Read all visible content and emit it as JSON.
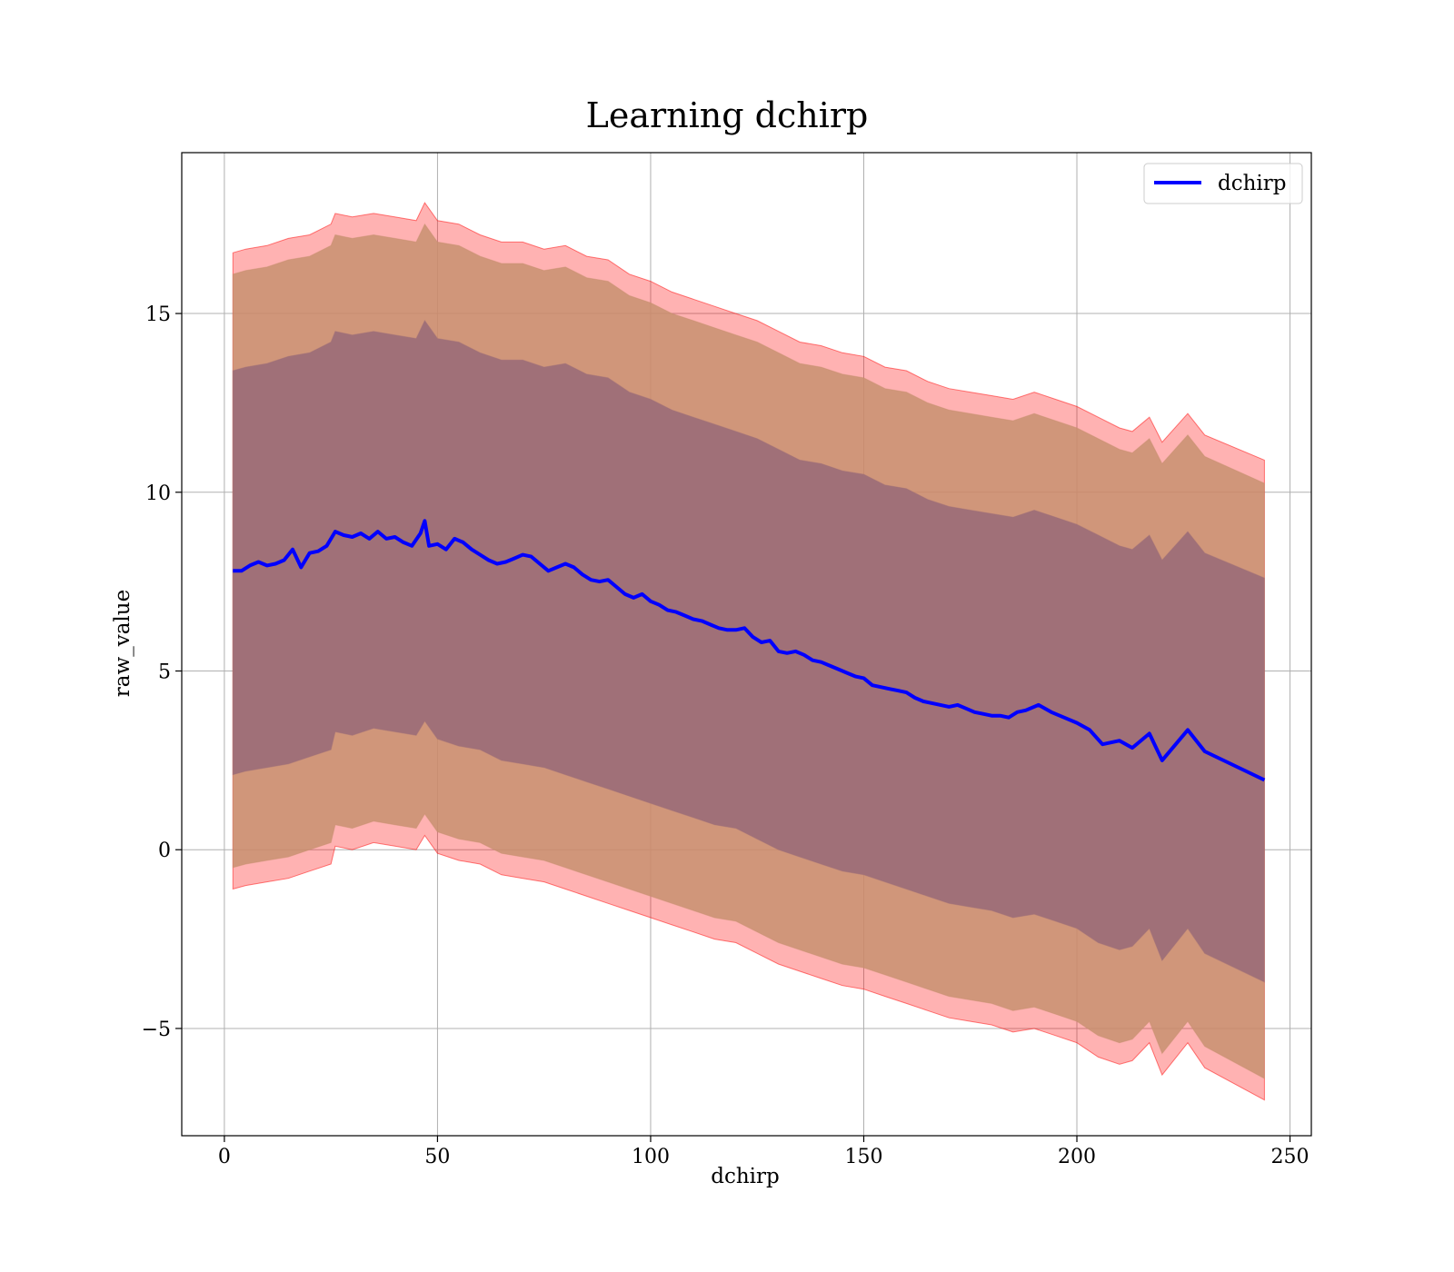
{
  "chart_data": {
    "type": "line",
    "title": "Learning dchirp",
    "xlabel": "dchirp",
    "ylabel": "raw_value",
    "xlim": [
      -10,
      255
    ],
    "ylim": [
      -8,
      19.5
    ],
    "xticks": [
      0,
      50,
      100,
      150,
      200,
      250
    ],
    "xtick_labels": [
      "0",
      "50",
      "100",
      "150",
      "200",
      "250"
    ],
    "yticks": [
      -5,
      0,
      5,
      10,
      15
    ],
    "ytick_labels": [
      "−5",
      "0",
      "5",
      "10",
      "15"
    ],
    "grid": true,
    "legend_position": "top-right",
    "series": [
      {
        "name": "dchirp",
        "color": "#0000ff",
        "x": [
          2,
          4,
          6,
          8,
          10,
          12,
          14,
          16,
          18,
          20,
          22,
          24,
          26,
          28,
          30,
          32,
          34,
          36,
          38,
          40,
          42,
          44,
          46,
          47,
          48,
          50,
          52,
          54,
          56,
          58,
          60,
          62,
          64,
          66,
          68,
          70,
          72,
          74,
          76,
          78,
          80,
          82,
          84,
          86,
          88,
          90,
          92,
          94,
          96,
          98,
          100,
          102,
          104,
          106,
          108,
          110,
          112,
          114,
          116,
          118,
          120,
          122,
          124,
          126,
          128,
          130,
          132,
          134,
          136,
          138,
          140,
          142,
          144,
          146,
          148,
          150,
          152,
          154,
          156,
          158,
          160,
          162,
          164,
          166,
          168,
          170,
          172,
          174,
          176,
          178,
          180,
          182,
          184,
          186,
          188,
          191,
          194,
          197,
          200,
          203,
          206,
          210,
          213,
          217,
          220,
          226,
          230,
          244
        ],
        "y": [
          7.8,
          7.8,
          7.95,
          8.05,
          7.95,
          8.0,
          8.1,
          8.4,
          7.9,
          8.3,
          8.35,
          8.5,
          8.9,
          8.8,
          8.75,
          8.85,
          8.7,
          8.9,
          8.7,
          8.75,
          8.6,
          8.5,
          8.85,
          9.2,
          8.5,
          8.55,
          8.4,
          8.7,
          8.6,
          8.4,
          8.25,
          8.1,
          8.0,
          8.05,
          8.15,
          8.25,
          8.2,
          8.0,
          7.8,
          7.9,
          8.0,
          7.9,
          7.7,
          7.55,
          7.5,
          7.55,
          7.35,
          7.15,
          7.05,
          7.15,
          6.95,
          6.85,
          6.7,
          6.65,
          6.55,
          6.45,
          6.4,
          6.3,
          6.2,
          6.15,
          6.15,
          6.2,
          5.95,
          5.8,
          5.85,
          5.55,
          5.5,
          5.55,
          5.45,
          5.3,
          5.25,
          5.15,
          5.05,
          4.95,
          4.85,
          4.8,
          4.6,
          4.55,
          4.5,
          4.45,
          4.4,
          4.25,
          4.15,
          4.1,
          4.05,
          4.0,
          4.05,
          3.95,
          3.85,
          3.8,
          3.75,
          3.75,
          3.7,
          3.85,
          3.9,
          4.05,
          3.85,
          3.7,
          3.55,
          3.35,
          2.95,
          3.05,
          2.85,
          3.25,
          2.5,
          3.35,
          2.75,
          1.95
        ]
      }
    ],
    "bands": [
      {
        "name": "outer",
        "color": "#ff0000",
        "opacity": 0.3,
        "x": [
          2,
          5,
          10,
          15,
          20,
          25,
          26,
          30,
          35,
          40,
          45,
          47,
          50,
          55,
          60,
          65,
          70,
          75,
          80,
          85,
          90,
          95,
          100,
          105,
          110,
          115,
          120,
          125,
          130,
          135,
          140,
          145,
          150,
          155,
          160,
          165,
          170,
          175,
          180,
          185,
          190,
          195,
          200,
          205,
          210,
          213,
          217,
          220,
          226,
          230,
          244
        ],
        "upper": [
          16.7,
          16.8,
          16.9,
          17.1,
          17.2,
          17.5,
          17.8,
          17.7,
          17.8,
          17.7,
          17.6,
          18.1,
          17.6,
          17.5,
          17.2,
          17.0,
          17.0,
          16.8,
          16.9,
          16.6,
          16.5,
          16.1,
          15.9,
          15.6,
          15.4,
          15.2,
          15.0,
          14.8,
          14.5,
          14.2,
          14.1,
          13.9,
          13.8,
          13.5,
          13.4,
          13.1,
          12.9,
          12.8,
          12.7,
          12.6,
          12.8,
          12.6,
          12.4,
          12.1,
          11.8,
          11.7,
          12.1,
          11.4,
          12.2,
          11.6,
          10.9
        ],
        "lower": [
          -1.1,
          -1.0,
          -0.9,
          -0.8,
          -0.6,
          -0.4,
          0.1,
          0.0,
          0.2,
          0.1,
          0.0,
          0.4,
          -0.1,
          -0.3,
          -0.4,
          -0.7,
          -0.8,
          -0.9,
          -1.1,
          -1.3,
          -1.5,
          -1.7,
          -1.9,
          -2.1,
          -2.3,
          -2.5,
          -2.6,
          -2.9,
          -3.2,
          -3.4,
          -3.6,
          -3.8,
          -3.9,
          -4.1,
          -4.3,
          -4.5,
          -4.7,
          -4.8,
          -4.9,
          -5.1,
          -5.0,
          -5.2,
          -5.4,
          -5.8,
          -6.0,
          -5.9,
          -5.4,
          -6.3,
          -5.4,
          -6.1,
          -7.0
        ]
      },
      {
        "name": "middle",
        "color": "#c89070",
        "opacity": 0.85,
        "x": [
          2,
          5,
          10,
          15,
          20,
          25,
          26,
          30,
          35,
          40,
          45,
          47,
          50,
          55,
          60,
          65,
          70,
          75,
          80,
          85,
          90,
          95,
          100,
          105,
          110,
          115,
          120,
          125,
          130,
          135,
          140,
          145,
          150,
          155,
          160,
          165,
          170,
          175,
          180,
          185,
          190,
          195,
          200,
          205,
          210,
          213,
          217,
          220,
          226,
          230,
          244
        ],
        "upper": [
          16.1,
          16.2,
          16.3,
          16.5,
          16.6,
          16.9,
          17.2,
          17.1,
          17.2,
          17.1,
          17.0,
          17.5,
          17.0,
          16.9,
          16.6,
          16.4,
          16.4,
          16.2,
          16.3,
          16.0,
          15.9,
          15.5,
          15.3,
          15.0,
          14.8,
          14.6,
          14.4,
          14.2,
          13.9,
          13.6,
          13.5,
          13.3,
          13.2,
          12.9,
          12.8,
          12.5,
          12.3,
          12.2,
          12.1,
          12.0,
          12.2,
          12.0,
          11.8,
          11.5,
          11.2,
          11.1,
          11.5,
          10.8,
          11.6,
          11.0,
          10.25
        ],
        "lower": [
          -0.5,
          -0.4,
          -0.3,
          -0.2,
          0.0,
          0.2,
          0.7,
          0.6,
          0.8,
          0.7,
          0.6,
          1.0,
          0.5,
          0.3,
          0.2,
          -0.1,
          -0.2,
          -0.3,
          -0.5,
          -0.7,
          -0.9,
          -1.1,
          -1.3,
          -1.5,
          -1.7,
          -1.9,
          -2.0,
          -2.3,
          -2.6,
          -2.8,
          -3.0,
          -3.2,
          -3.3,
          -3.5,
          -3.7,
          -3.9,
          -4.1,
          -4.2,
          -4.3,
          -4.5,
          -4.4,
          -4.6,
          -4.8,
          -5.2,
          -5.4,
          -5.3,
          -4.8,
          -5.7,
          -4.8,
          -5.5,
          -6.4
        ]
      },
      {
        "name": "inner",
        "color": "#a07078",
        "opacity": 1,
        "x": [
          2,
          5,
          10,
          15,
          20,
          25,
          26,
          30,
          35,
          40,
          45,
          47,
          50,
          55,
          60,
          65,
          70,
          75,
          80,
          85,
          90,
          95,
          100,
          105,
          110,
          115,
          120,
          125,
          130,
          135,
          140,
          145,
          150,
          155,
          160,
          165,
          170,
          175,
          180,
          185,
          190,
          195,
          200,
          205,
          210,
          213,
          217,
          220,
          226,
          230,
          244
        ],
        "upper": [
          13.4,
          13.5,
          13.6,
          13.8,
          13.9,
          14.2,
          14.5,
          14.4,
          14.5,
          14.4,
          14.3,
          14.8,
          14.3,
          14.2,
          13.9,
          13.7,
          13.7,
          13.5,
          13.6,
          13.3,
          13.2,
          12.8,
          12.6,
          12.3,
          12.1,
          11.9,
          11.7,
          11.5,
          11.2,
          10.9,
          10.8,
          10.6,
          10.5,
          10.2,
          10.1,
          9.8,
          9.6,
          9.5,
          9.4,
          9.3,
          9.5,
          9.3,
          9.1,
          8.8,
          8.5,
          8.4,
          8.8,
          8.1,
          8.9,
          8.3,
          7.6
        ],
        "lower": [
          2.1,
          2.2,
          2.3,
          2.4,
          2.6,
          2.8,
          3.3,
          3.2,
          3.4,
          3.3,
          3.2,
          3.6,
          3.1,
          2.9,
          2.8,
          2.5,
          2.4,
          2.3,
          2.1,
          1.9,
          1.7,
          1.5,
          1.3,
          1.1,
          0.9,
          0.7,
          0.6,
          0.3,
          0.0,
          -0.2,
          -0.4,
          -0.6,
          -0.7,
          -0.9,
          -1.1,
          -1.3,
          -1.5,
          -1.6,
          -1.7,
          -1.9,
          -1.8,
          -2.0,
          -2.2,
          -2.6,
          -2.8,
          -2.7,
          -2.2,
          -3.1,
          -2.2,
          -2.9,
          -3.7
        ]
      }
    ]
  }
}
